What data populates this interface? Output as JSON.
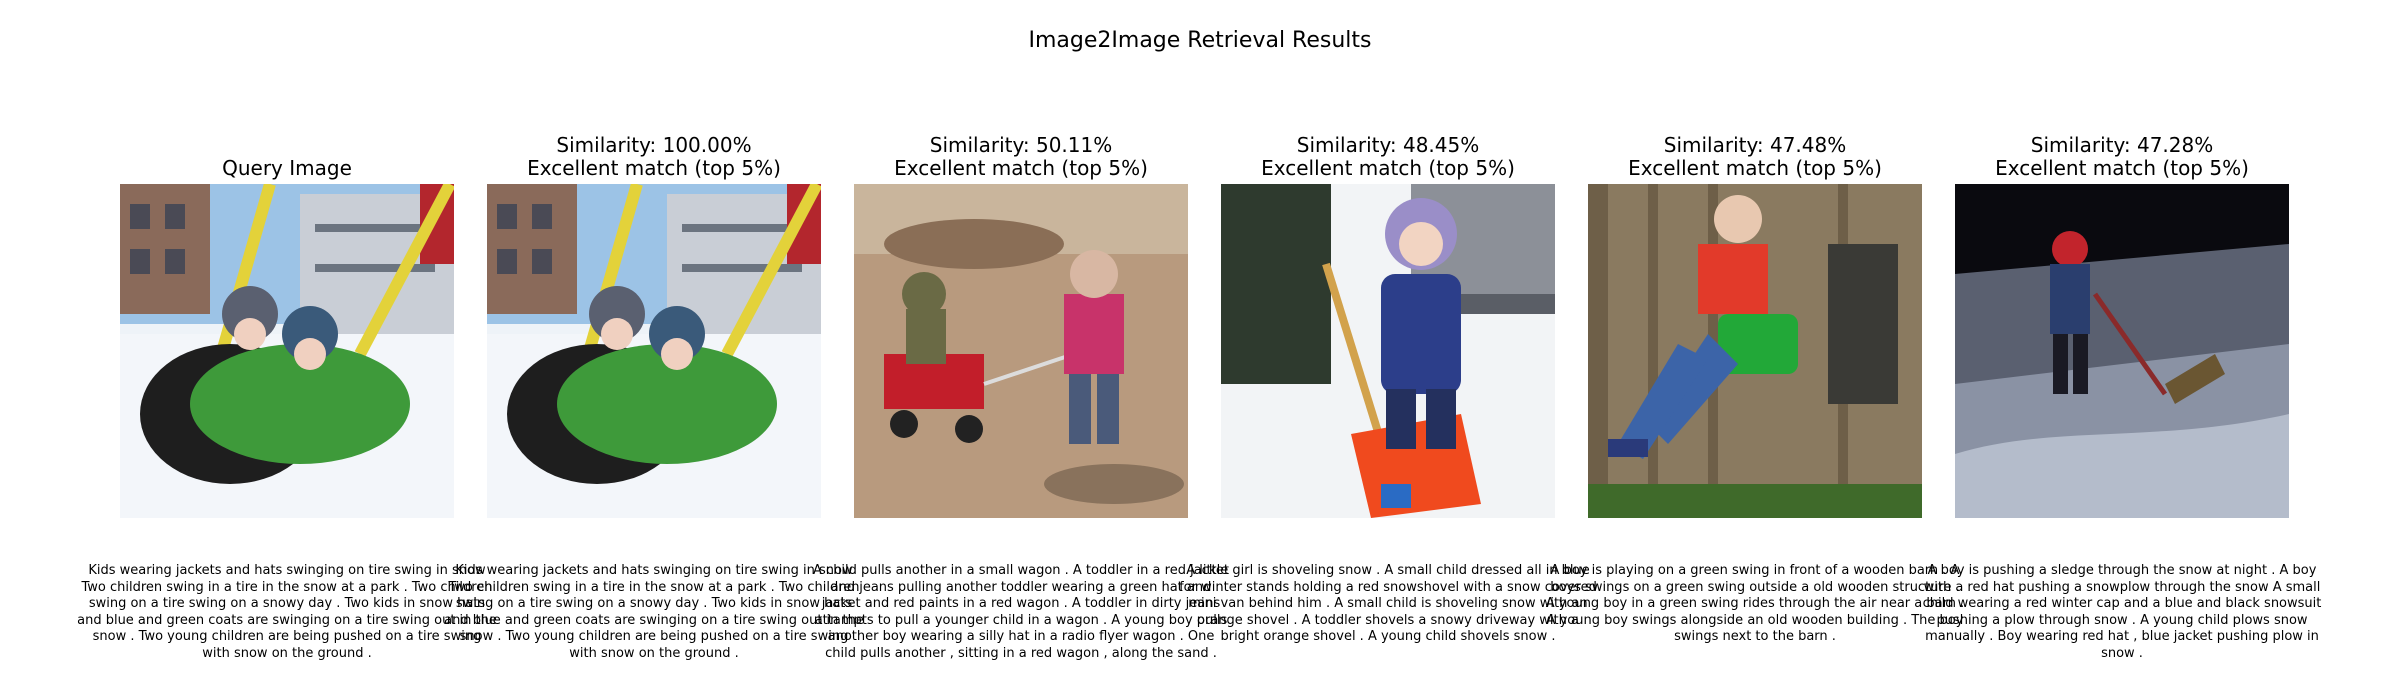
{
  "figure": {
    "title": "Image2Image Retrieval Results"
  },
  "panels": [
    {
      "title_line1": "Query Image",
      "title_line2": "",
      "scene": "tire-swing",
      "caption": "Kids wearing jackets and hats swinging on tire swing in snow Two children swing in a tire in the snow at a park . Two children swing on a tire swing on a snowy day . Two kids in snow hats and blue and green coats are swinging on a tire swing out in the snow . Two young children are being pushed on a tire swing with snow on the ground ."
    },
    {
      "title_line1": "Similarity: 100.00%",
      "title_line2": "Excellent match (top 5%)",
      "scene": "tire-swing",
      "caption": "Kids wearing jackets and hats swinging on tire swing in snow Two children swing in a tire in the snow at a park . Two children swing on a tire swing on a snowy day . Two kids in snow hats and blue and green coats are swinging on a tire swing out in the snow . Two young children are being pushed on a tire swing with snow on the ground ."
    },
    {
      "title_line1": "Similarity: 50.11%",
      "title_line2": "Excellent match (top 5%)",
      "scene": "red-wagon",
      "caption": "A child pulls another in a small wagon . A toddler in a red jacket and jeans pulling another toddler wearing a green hat and jacket and red paints in a red wagon . A toddler in dirty jeans attampts to pull a younger child in a wagon . A young boy pulls another boy wearing a silly hat in a radio flyer wagon . One child pulls another , sitting in a red wagon , along the sand ."
    },
    {
      "title_line1": "Similarity: 48.45%",
      "title_line2": "Excellent match (top 5%)",
      "scene": "snow-shovel",
      "caption": "A little girl is shoveling snow . A small child dressed all in blue for winter stands holding a red snowshovel with a snow covered mini van behind him . A small child is shoveling snow with an orange shovel . A toddler shovels a snowy driveway with a bright orange shovel . A young child shovels snow ."
    },
    {
      "title_line1": "Similarity: 47.48%",
      "title_line2": "Excellent match (top 5%)",
      "scene": "green-swing",
      "caption": "A boy is playing on a green swing in front of a wooden barn . A boys swings on a green swing outside a old wooden structure . A young boy in a green swing rides through the air near a barn . A young boy swings alongside an old wooden building . The boy swings next to the barn ."
    },
    {
      "title_line1": "Similarity: 47.28%",
      "title_line2": "Excellent match (top 5%)",
      "scene": "night-sledge",
      "caption": "A boy is pushing a sledge through the snow at night . A boy with a red hat pushing a snowplow through the snow A small child wearing a red winter cap and a blue and black snowsuit pushing a plow through snow . A young child plows snow manually . Boy wearing red hat , blue jacket pushing plow in snow ."
    }
  ]
}
